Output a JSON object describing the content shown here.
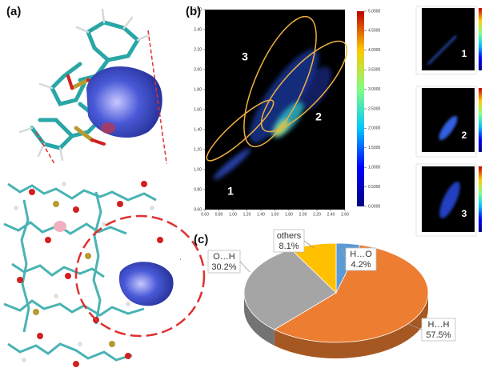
{
  "panel_labels": {
    "a": "(a)",
    "b": "(b)",
    "c": "(c)"
  },
  "chart_data": [
    {
      "type": "fingerprint",
      "xlim": [
        0.6,
        2.6
      ],
      "ylim": [
        0.6,
        2.6
      ],
      "xticks": [
        {
          "value": 0.6,
          "label": "0.60"
        },
        {
          "value": 0.8,
          "label": "0.80"
        },
        {
          "value": 1.0,
          "label": "1.00"
        },
        {
          "value": 1.2,
          "label": "1.20"
        },
        {
          "value": 1.4,
          "label": "1.40"
        },
        {
          "value": 1.6,
          "label": "1.60"
        },
        {
          "value": 1.8,
          "label": "1.80"
        },
        {
          "value": 2.0,
          "label": "2.00"
        },
        {
          "value": 2.2,
          "label": "2.20"
        },
        {
          "value": 2.4,
          "label": "2.40"
        },
        {
          "value": 2.6,
          "label": "2.60"
        }
      ],
      "yticks": [
        {
          "value": 0.6,
          "label": "0.60"
        },
        {
          "value": 0.8,
          "label": "0.80"
        },
        {
          "value": 1.0,
          "label": "1.00"
        },
        {
          "value": 1.2,
          "label": "1.20"
        },
        {
          "value": 1.4,
          "label": "1.40"
        },
        {
          "value": 1.6,
          "label": "1.60"
        },
        {
          "value": 1.8,
          "label": "1.80"
        },
        {
          "value": 2.0,
          "label": "2.00"
        },
        {
          "value": 2.2,
          "label": "2.20"
        },
        {
          "value": 2.4,
          "label": "2.40"
        },
        {
          "value": 2.6,
          "label": "2.60"
        }
      ],
      "clim": [
        0,
        5
      ],
      "cticks": [
        {
          "value": 5,
          "label": "5.0000"
        },
        {
          "value": 4.5,
          "label": "4.5000"
        },
        {
          "value": 4,
          "label": "4.0000"
        },
        {
          "value": 3.5,
          "label": "3.5000"
        },
        {
          "value": 3,
          "label": "3.0000"
        },
        {
          "value": 2.5,
          "label": "2.5000"
        },
        {
          "value": 2,
          "label": "2.0000"
        },
        {
          "value": 1.5,
          "label": "1.5000"
        },
        {
          "value": 1,
          "label": "1.0000"
        },
        {
          "value": 0.5,
          "label": "0.5000"
        },
        {
          "value": 0,
          "label": "0.0000"
        }
      ],
      "annotations": [
        "1",
        "2",
        "3"
      ],
      "insets": [
        "1",
        "2",
        "3"
      ]
    },
    {
      "type": "pie",
      "categories": [
        "H…O",
        "H…H",
        "O…H",
        "others"
      ],
      "values": [
        4.2,
        57.5,
        30.2,
        8.1
      ],
      "value_labels": [
        "4.2%",
        "57.5%",
        "30.2%",
        "8.1%"
      ],
      "colors": [
        "#5b9bd5",
        "#ed7d31",
        "#a5a5a5",
        "#ffc000"
      ]
    }
  ]
}
